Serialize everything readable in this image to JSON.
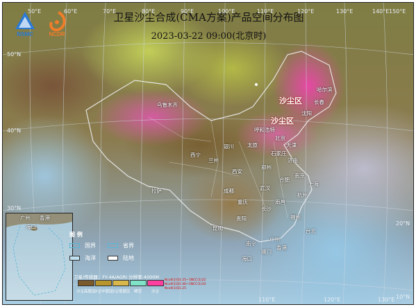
{
  "title": "卫星沙尘合成(CMA方案)产品空间分布图",
  "datetime": "2023-03-22 09:00(北京时)",
  "logos": {
    "nsmc": "NSMC",
    "ncdr": "NCDR"
  },
  "lon_labels": [
    "50°E",
    "60°E",
    "70°E",
    "80°E",
    "90°E",
    "100°E",
    "110°E",
    "120°E",
    "130°E",
    "140°E",
    "150°E"
  ],
  "lat_labels": [
    "50°N",
    "40°N",
    "30°N",
    "20°N",
    "10°N"
  ],
  "bottom_lon_labels": [
    "110°E",
    "120°E",
    "130°E"
  ],
  "dust_labels": [
    "沙尘区",
    "沙尘区"
  ],
  "cities": [
    "乌鲁木齐",
    "哈尔滨",
    "长春",
    "沈阳",
    "呼和浩特",
    "北京",
    "天津",
    "石家庄",
    "太原",
    "济南",
    "银川",
    "郑州",
    "西宁",
    "兰州",
    "西安",
    "合肥",
    "南京",
    "上海",
    "武汉",
    "杭州",
    "成都",
    "重庆",
    "长沙",
    "南昌",
    "福州",
    "拉萨",
    "贵阳",
    "昆明",
    "南宁",
    "广州",
    "台北",
    "香港",
    "澳门",
    "海口"
  ],
  "inset_labels": [
    "广州",
    "香港",
    "海口"
  ],
  "legend": {
    "title": "图    例",
    "items": [
      "国界",
      "省界",
      "海洋",
      "陆地"
    ],
    "colors": [
      "#58b8d8",
      "#58b8d8",
      "#bfe0ef",
      "#ffffff"
    ]
  },
  "meta": "卫星/传感器：FY-4A/AGRI 分辨率:4000M",
  "colorbar": {
    "labels": [
      "沙尘高层区",
      "沙尘中层区",
      "沙尘低层区",
      "晴空",
      "沙尘"
    ],
    "colors": [
      "#7a5a2a",
      "#b8952d",
      "#d8b84a",
      "#7fe3c8",
      "#ff3fa0"
    ],
    "notes": [
      "Ncoll(1)Q1.25~1NCC(1)22",
      "Ncoll(1)Q1.40~1NCC(1)33",
      "Ncoll(1)Q1.25"
    ]
  }
}
